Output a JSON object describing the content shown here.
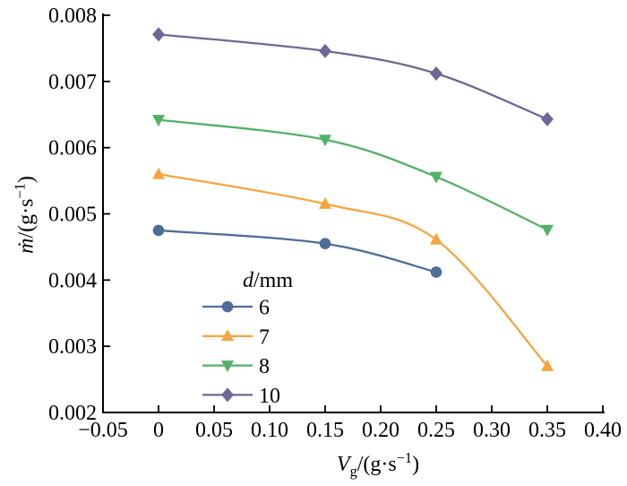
{
  "chart_data": {
    "type": "line",
    "title": "",
    "xlabel": {
      "symbol": "V",
      "sub": "g",
      "rest": "/(g·s",
      "sup": "−1",
      "end": ")"
    },
    "ylabel": {
      "symbol": "ṁ",
      "rest": "/(g·s",
      "sup": "−1",
      "end": ")"
    },
    "xlim": [
      -0.05,
      0.4
    ],
    "ylim": [
      0.002,
      0.008
    ],
    "grid": false,
    "legend_position": "inside lower-center-left",
    "axis_color": "#000000",
    "background": "#ffffff",
    "xticks": {
      "values": [
        -0.05,
        0,
        0.05,
        0.1,
        0.15,
        0.2,
        0.25,
        0.3,
        0.35,
        0.4
      ],
      "labels": [
        "−0.05",
        "0",
        "0.05",
        "0.10",
        "0.15",
        "0.20",
        "0.25",
        "0.30",
        "0.35",
        "0.40"
      ]
    },
    "yticks": {
      "values": [
        0.002,
        0.003,
        0.004,
        0.005,
        0.006,
        0.007,
        0.008
      ],
      "labels": [
        "0.002",
        "0.003",
        "0.004",
        "0.005",
        "0.006",
        "0.007",
        "0.008"
      ]
    },
    "legend": {
      "title": {
        "symbol": "d",
        "rest": "/mm"
      }
    },
    "series": [
      {
        "name": "6",
        "marker": "circle",
        "color": "#4f6d99",
        "x": [
          0,
          0.15,
          0.25
        ],
        "y": [
          0.00475,
          0.00455,
          0.00412
        ]
      },
      {
        "name": "7",
        "marker": "triangle-up",
        "color": "#f7a440",
        "x": [
          0,
          0.15,
          0.25,
          0.35
        ],
        "y": [
          0.0056,
          0.00515,
          0.00461,
          0.0027
        ]
      },
      {
        "name": "8",
        "marker": "triangle-down",
        "color": "#52b169",
        "x": [
          0,
          0.15,
          0.25,
          0.35
        ],
        "y": [
          0.00642,
          0.00612,
          0.00556,
          0.00476
        ]
      },
      {
        "name": "10",
        "marker": "diamond",
        "color": "#6f6894",
        "x": [
          0,
          0.15,
          0.25,
          0.35
        ],
        "y": [
          0.00771,
          0.00746,
          0.00712,
          0.00643
        ]
      }
    ]
  }
}
